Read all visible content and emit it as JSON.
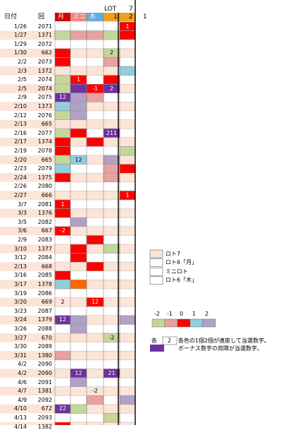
{
  "header": {
    "date_label": "日付",
    "round_label": "回",
    "lot_label": "LOT",
    "col_labels": [
      "月",
      "ミニ",
      "木"
    ],
    "col_colors": [
      "#d40000",
      "#ee8888",
      "#66aadd"
    ],
    "lot_cols": [
      {
        "top": "",
        "bottom": "1",
        "color": "#f0a020"
      },
      {
        "top": "7",
        "bottom": "2",
        "color": "#f0a020"
      }
    ],
    "extra": "1"
  },
  "palette": {
    "band": "#fce4d6",
    "R": "#ff0000",
    "P": "#e8a0a0",
    "G": "#c4d79b",
    "B": "#92cddc",
    "V": "#b1a0c7",
    "D": "#7030a0",
    "O": "#ff6600"
  },
  "rows": [
    {
      "date": "1/26",
      "round": "2071",
      "cells": [
        "",
        "",
        "",
        "",
        "R"
      ],
      "nums": [
        "",
        "",
        "",
        "",
        "1"
      ]
    },
    {
      "date": "1/27",
      "round": "1371",
      "cells": [
        "G",
        "P",
        "P",
        "G",
        "R"
      ],
      "nums": [
        "",
        "",
        "",
        "",
        ""
      ]
    },
    {
      "date": "1/29",
      "round": "2072",
      "cells": [
        "",
        "",
        "",
        "",
        ""
      ],
      "nums": [
        "",
        "",
        "",
        "",
        ""
      ]
    },
    {
      "date": "1/30",
      "round": "662",
      "cells": [
        "R",
        "",
        "",
        "G",
        ""
      ],
      "nums": [
        "",
        "",
        "",
        "2",
        ""
      ]
    },
    {
      "date": "2/2",
      "round": "2073",
      "cells": [
        "R",
        "",
        "",
        "P",
        ""
      ],
      "nums": [
        "",
        "",
        "",
        "",
        ""
      ]
    },
    {
      "date": "2/3",
      "round": "1372",
      "cells": [
        "",
        "",
        "",
        "",
        "B"
      ],
      "nums": [
        "",
        "",
        "",
        "",
        ""
      ]
    },
    {
      "date": "2/5",
      "round": "2074",
      "cells": [
        "G",
        "R",
        "",
        "R",
        ""
      ],
      "nums": [
        "",
        "1",
        "",
        "",
        ""
      ]
    },
    {
      "date": "2/5",
      "round": "2074",
      "cells": [
        "G",
        "D",
        "R",
        "D",
        ""
      ],
      "nums": [
        "",
        "",
        "-1",
        "2",
        ""
      ]
    },
    {
      "date": "2/9",
      "round": "2075",
      "cells": [
        "D",
        "V",
        "P",
        "",
        ""
      ],
      "nums": [
        "12",
        "",
        "",
        "",
        ""
      ]
    },
    {
      "date": "2/10",
      "round": "1373",
      "cells": [
        "B",
        "V",
        "",
        "",
        ""
      ],
      "nums": [
        "",
        "",
        "",
        "",
        ""
      ]
    },
    {
      "date": "2/12",
      "round": "2076",
      "cells": [
        "G",
        "V",
        "",
        "",
        ""
      ],
      "nums": [
        "",
        "",
        "",
        "",
        ""
      ]
    },
    {
      "date": "2/13",
      "round": "665",
      "cells": [
        "",
        "",
        "",
        "",
        ""
      ],
      "nums": [
        "",
        "",
        "",
        "",
        ""
      ]
    },
    {
      "date": "2/16",
      "round": "2077",
      "cells": [
        "G",
        "R",
        "",
        "D",
        ""
      ],
      "nums": [
        "",
        "",
        "",
        "211",
        ""
      ]
    },
    {
      "date": "2/17",
      "round": "1374",
      "cells": [
        "R",
        "",
        "R",
        "",
        ""
      ],
      "nums": [
        "",
        "",
        "",
        "",
        ""
      ]
    },
    {
      "date": "2/19",
      "round": "2078",
      "cells": [
        "R",
        "",
        "",
        "",
        "G"
      ],
      "nums": [
        "",
        "",
        "",
        "",
        ""
      ]
    },
    {
      "date": "2/20",
      "round": "665",
      "cells": [
        "G",
        "B",
        "",
        "V",
        ""
      ],
      "nums": [
        "",
        "12",
        "",
        "",
        ""
      ]
    },
    {
      "date": "2/23",
      "round": "2079",
      "cells": [
        "B",
        "",
        "",
        "P",
        "R"
      ],
      "nums": [
        "",
        "",
        "",
        "",
        ""
      ]
    },
    {
      "date": "2/24",
      "round": "1375",
      "cells": [
        "R",
        "",
        "",
        "P",
        ""
      ],
      "nums": [
        "",
        "",
        "",
        "",
        ""
      ]
    },
    {
      "date": "2/26",
      "round": "2080",
      "cells": [
        "",
        "",
        "",
        "",
        ""
      ],
      "nums": [
        "",
        "",
        "",
        "",
        ""
      ]
    },
    {
      "date": "2/27",
      "round": "666",
      "cells": [
        "",
        "",
        "",
        "",
        "R"
      ],
      "nums": [
        "",
        "",
        "",
        "",
        "1"
      ]
    },
    {
      "date": "3/7",
      "round": "2081",
      "cells": [
        "R",
        "",
        "",
        "",
        ""
      ],
      "nums": [
        "1",
        "",
        "",
        "",
        ""
      ]
    },
    {
      "date": "3/3",
      "round": "1376",
      "cells": [
        "R",
        "",
        "",
        "",
        ""
      ],
      "nums": [
        "",
        "",
        "",
        "",
        ""
      ]
    },
    {
      "date": "3/5",
      "round": "2082",
      "cells": [
        "",
        "V",
        "",
        "",
        ""
      ],
      "nums": [
        "",
        "",
        "",
        "",
        ""
      ]
    },
    {
      "date": "3/6",
      "round": "667",
      "cells": [
        "R",
        "",
        "",
        "",
        ""
      ],
      "nums": [
        "-2",
        "",
        "",
        "",
        ""
      ]
    },
    {
      "date": "2/9",
      "round": "2083",
      "cells": [
        "",
        "",
        "R",
        "",
        ""
      ],
      "nums": [
        "",
        "",
        "",
        "",
        ""
      ]
    },
    {
      "date": "3/10",
      "round": "1377",
      "cells": [
        "",
        "R",
        "",
        "G",
        ""
      ],
      "nums": [
        "",
        "",
        "",
        "",
        ""
      ]
    },
    {
      "date": "3/12",
      "round": "2084",
      "cells": [
        "",
        "R",
        "",
        "",
        ""
      ],
      "nums": [
        "",
        "",
        "",
        "",
        ""
      ]
    },
    {
      "date": "2/13",
      "round": "668",
      "cells": [
        "",
        "",
        "R",
        "",
        ""
      ],
      "nums": [
        "",
        "",
        "",
        "",
        ""
      ]
    },
    {
      "date": "3/16",
      "round": "2085",
      "cells": [
        "R",
        "",
        "",
        "",
        ""
      ],
      "nums": [
        "",
        "",
        "",
        "",
        ""
      ]
    },
    {
      "date": "3/17",
      "round": "1378",
      "cells": [
        "B",
        "O",
        "",
        "",
        ""
      ],
      "nums": [
        "",
        "",
        "",
        "",
        ""
      ]
    },
    {
      "date": "3/19",
      "round": "2086",
      "cells": [
        "",
        "",
        "",
        "",
        ""
      ],
      "nums": [
        "",
        "",
        "",
        "",
        ""
      ]
    },
    {
      "date": "3/20",
      "round": "669",
      "cells": [
        "",
        "",
        "R",
        "",
        ""
      ],
      "nums": [
        "2",
        "",
        "12",
        "",
        ""
      ]
    },
    {
      "date": "3/23",
      "round": "2087",
      "cells": [
        "",
        "",
        "",
        "",
        ""
      ],
      "nums": [
        "",
        "",
        "",
        "",
        ""
      ]
    },
    {
      "date": "3/24",
      "round": "1379",
      "cells": [
        "D",
        "V",
        "",
        "",
        "V"
      ],
      "nums": [
        "12",
        "",
        "",
        "",
        ""
      ]
    },
    {
      "date": "3/26",
      "round": "2088",
      "cells": [
        "",
        "V",
        "",
        "",
        ""
      ],
      "nums": [
        "",
        "",
        "",
        "",
        ""
      ]
    },
    {
      "date": "3/27",
      "round": "670",
      "cells": [
        "",
        "",
        "",
        "G",
        ""
      ],
      "nums": [
        "",
        "",
        "",
        "-2",
        ""
      ]
    },
    {
      "date": "3/30",
      "round": "2089",
      "cells": [
        "",
        "",
        "",
        "",
        ""
      ],
      "nums": [
        "",
        "",
        "",
        "",
        ""
      ]
    },
    {
      "date": "3/31",
      "round": "1380",
      "cells": [
        "P",
        "",
        "",
        "",
        ""
      ],
      "nums": [
        "",
        "",
        "",
        "",
        ""
      ]
    },
    {
      "date": "4/2",
      "round": "2090",
      "cells": [
        "",
        "",
        "",
        "",
        ""
      ],
      "nums": [
        "",
        "",
        "",
        "",
        ""
      ]
    },
    {
      "date": "4/2",
      "round": "2090",
      "cells": [
        "",
        "D",
        "",
        "D",
        ""
      ],
      "nums": [
        "",
        "12",
        "",
        "21",
        ""
      ]
    },
    {
      "date": "4/6",
      "round": "2091",
      "cells": [
        "",
        "V",
        "",
        "",
        ""
      ],
      "nums": [
        "",
        "",
        "",
        "",
        ""
      ]
    },
    {
      "date": "4/7",
      "round": "1381",
      "cells": [
        "",
        "",
        "",
        "",
        ""
      ],
      "nums": [
        "",
        "",
        "-2",
        "",
        ""
      ]
    },
    {
      "date": "4/9",
      "round": "2092",
      "cells": [
        "",
        "",
        "P",
        "",
        "V"
      ],
      "nums": [
        "",
        "",
        "",
        "",
        ""
      ]
    },
    {
      "date": "4/10",
      "round": "672",
      "cells": [
        "D",
        "G",
        "",
        "",
        ""
      ],
      "nums": [
        "22",
        "",
        "",
        "",
        ""
      ]
    },
    {
      "date": "4/13",
      "round": "2093",
      "cells": [
        "",
        "",
        "",
        "G",
        ""
      ],
      "nums": [
        "",
        "",
        "",
        "",
        ""
      ]
    },
    {
      "date": "4/14",
      "round": "1382",
      "cells": [
        "R",
        "",
        "",
        "",
        ""
      ],
      "nums": [
        "",
        "",
        "",
        "",
        ""
      ]
    }
  ],
  "legend": {
    "items": [
      "ロト7",
      "ロト6「月」",
      "ミニロト",
      "ロト6「木」"
    ],
    "scale_labels": [
      "-2",
      "-1",
      "0",
      "1",
      "2"
    ],
    "scale_colors": [
      "#c4d79b",
      "#e8a0a0",
      "#ff0000",
      "#92cddc",
      "#b1a0c7"
    ],
    "note_prefix": "各",
    "note_box": "2",
    "note_line1": "各色の1個2個が連座して当選数字。",
    "note_line2": "ボーナス数字の両隣が当選数字。",
    "note_color": "#7030a0"
  }
}
